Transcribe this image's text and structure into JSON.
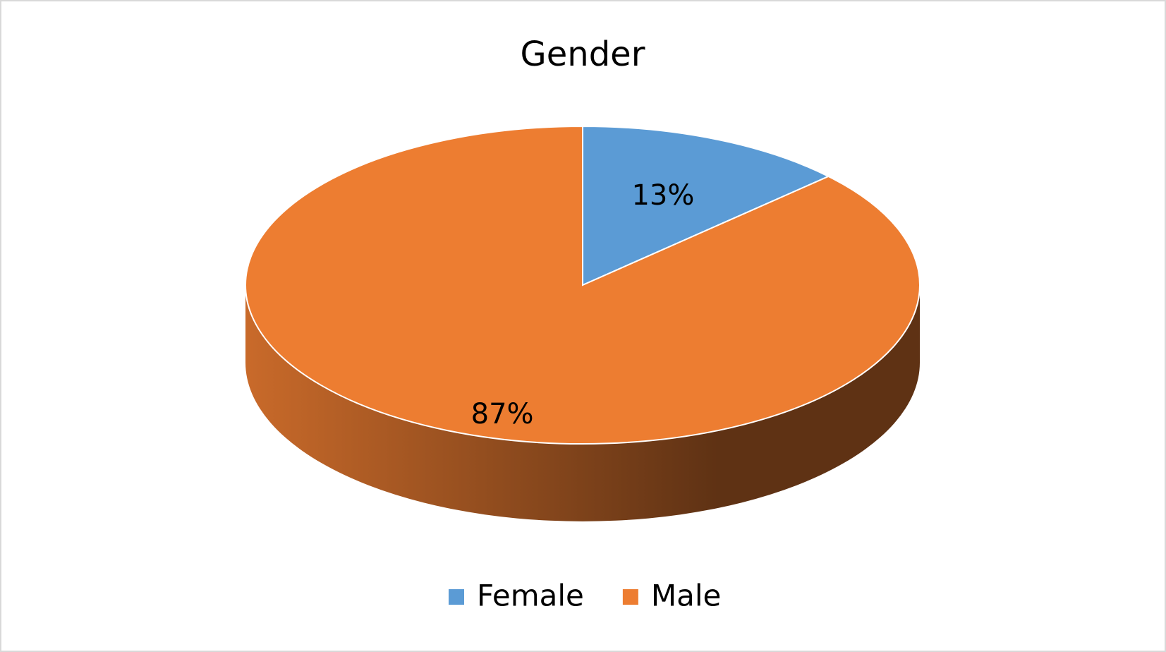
{
  "chart_data": {
    "type": "pie",
    "title": "Gender",
    "categories": [
      "Female",
      "Male"
    ],
    "values": [
      13,
      87
    ],
    "value_labels": [
      "13%",
      "87%"
    ],
    "colors": [
      "#5b9bd5",
      "#ed7d31"
    ],
    "legend": "bottom"
  }
}
